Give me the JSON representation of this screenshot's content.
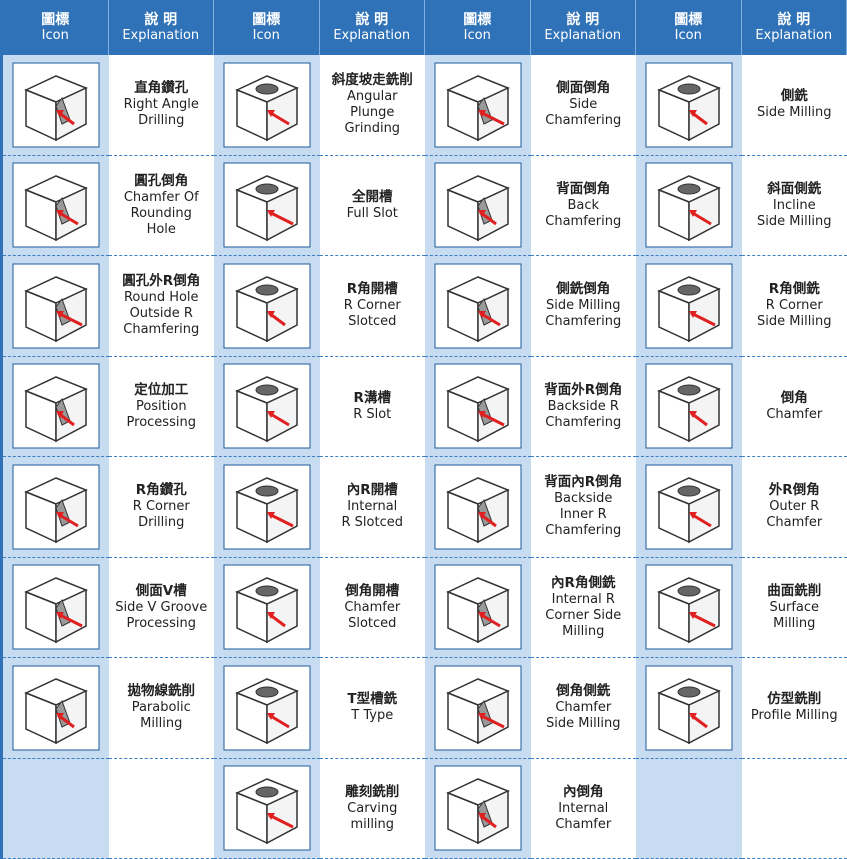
{
  "header": [
    [
      "圖標",
      "Icon"
    ],
    [
      "說 明",
      "Explanation"
    ],
    [
      "圖標",
      "Icon"
    ],
    [
      "說 明",
      "Explanation"
    ],
    [
      "圖標",
      "Icon"
    ],
    [
      "說 明",
      "Explanation"
    ],
    [
      "圖標",
      "Icon"
    ],
    [
      "說 明",
      "Explanation"
    ]
  ],
  "rows": [
    [
      {
        "zh": "直角鑽孔",
        "en": [
          "Right Angle",
          "Drilling"
        ]
      },
      {
        "zh": "斜度坡走銑削",
        "en": [
          "Angular",
          "Plunge",
          "Grinding"
        ]
      },
      {
        "zh": "側面倒角",
        "en": [
          "Side",
          "Chamfering"
        ]
      },
      {
        "zh": "側銑",
        "en": [
          "Side Milling"
        ]
      }
    ],
    [
      {
        "zh": "圓孔倒角",
        "en": [
          "Chamfer Of",
          "Rounding",
          "Hole"
        ]
      },
      {
        "zh": "全開槽",
        "en": [
          "Full Slot"
        ]
      },
      {
        "zh": "背面倒角",
        "en": [
          "Back",
          "Chamfering"
        ]
      },
      {
        "zh": "斜面側銑",
        "en": [
          "Incline",
          "Side Milling"
        ]
      }
    ],
    [
      {
        "zh": "圓孔外R倒角",
        "en": [
          "Round Hole",
          "Outside R",
          "Chamfering"
        ]
      },
      {
        "zh": "R角開槽",
        "en": [
          "R Corner",
          "Slotced"
        ]
      },
      {
        "zh": "側銑倒角",
        "en": [
          "Side Milling",
          "Chamfering"
        ]
      },
      {
        "zh": "R角側銑",
        "en": [
          "R Corner",
          "Side Milling"
        ]
      }
    ],
    [
      {
        "zh": "定位加工",
        "en": [
          "Position",
          "Processing"
        ]
      },
      {
        "zh": "R溝槽",
        "en": [
          "R Slot"
        ]
      },
      {
        "zh": "背面外R倒角",
        "en": [
          "Backside R",
          "Chamfering"
        ]
      },
      {
        "zh": "倒角",
        "en": [
          "Chamfer"
        ]
      }
    ],
    [
      {
        "zh": "R角鑽孔",
        "en": [
          "R Corner",
          "Drilling"
        ]
      },
      {
        "zh": "內R開槽",
        "en": [
          "Internal",
          "R Slotced"
        ]
      },
      {
        "zh": "背面內R倒角",
        "en": [
          "Backside",
          "Inner R",
          "Chamfering"
        ]
      },
      {
        "zh": "外R倒角",
        "en": [
          "Outer R",
          "Chamfer"
        ]
      }
    ],
    [
      {
        "zh": "側面V槽",
        "en": [
          "Side V Groove",
          "Processing"
        ]
      },
      {
        "zh": "倒角開槽",
        "en": [
          "Chamfer",
          "Slotced"
        ]
      },
      {
        "zh": "內R角側銑",
        "en": [
          "Internal R",
          "Corner Side",
          "Milling"
        ]
      },
      {
        "zh": "曲面銑削",
        "en": [
          "Surface",
          "Milling"
        ]
      }
    ],
    [
      {
        "zh": "拋物線銑削",
        "en": [
          "Parabolic",
          "Milling"
        ]
      },
      {
        "zh": "T型槽銑",
        "en": [
          "T Type"
        ]
      },
      {
        "zh": "倒角側銑",
        "en": [
          "Chamfer",
          "Side Milling"
        ]
      },
      {
        "zh": "仿型銑削",
        "en": [
          "Profile Milling"
        ]
      }
    ],
    [
      null,
      {
        "zh": "雕刻銑削",
        "en": [
          "Carving",
          "milling"
        ]
      },
      {
        "zh": "內倒角",
        "en": [
          "Internal",
          "Chamfer"
        ]
      },
      null
    ]
  ]
}
